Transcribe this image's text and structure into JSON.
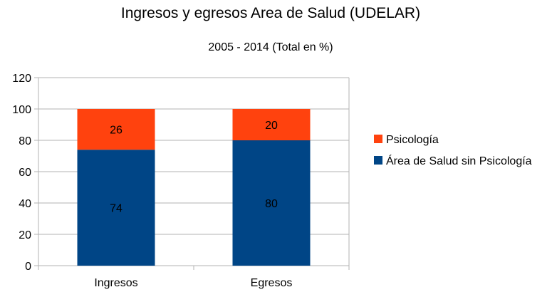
{
  "chart_data": {
    "type": "bar",
    "stacked": true,
    "title": "Ingresos y egresos Area de Salud (UDELAR)",
    "subtitle": "2005 - 2014 (Total en %)",
    "xlabel": "",
    "ylabel": "",
    "categories": [
      "Ingresos",
      "Egresos"
    ],
    "series": [
      {
        "name": "Área de Salud sin Psicología",
        "values": [
          74,
          80
        ],
        "color": "#004586"
      },
      {
        "name": "Psicología",
        "values": [
          26,
          20
        ],
        "color": "#ff420e"
      }
    ],
    "ylim": [
      0,
      120
    ],
    "yticks": [
      0,
      20,
      40,
      60,
      80,
      100,
      120
    ],
    "grid": true,
    "legend_position": "right",
    "data_labels": true
  }
}
